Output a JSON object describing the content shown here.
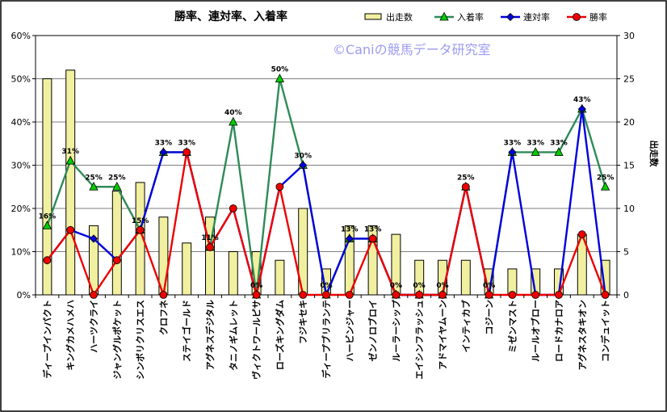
{
  "chart_data": {
    "type": "bar+line",
    "title": "勝率、連対率、入着率",
    "watermark": "©Caniの競馬データ研究室",
    "y2label": "出走数",
    "ylim": [
      0,
      60
    ],
    "y2lim": [
      0,
      30
    ],
    "yticks": [
      "0%",
      "10%",
      "20%",
      "30%",
      "40%",
      "50%",
      "60%"
    ],
    "y2ticks": [
      "0",
      "5",
      "10",
      "15",
      "20",
      "25",
      "30"
    ],
    "grid": true,
    "legend_position": "top-right",
    "categories": [
      "ディープインパクト",
      "キングカメハメハ",
      "ハーツクライ",
      "ジャングルポケット",
      "シンボリクリスエス",
      "クロフネ",
      "ステイゴールド",
      "アグネスデジタル",
      "タニノギムレット",
      "ヴィクトワールピサ",
      "ローズキングダム",
      "フジキセキ",
      "ディープブリランテ",
      "ハービンジャー",
      "ゼンノロブロイ",
      "ルーラーシップ",
      "エイシンフラッシュ",
      "アドマイヤムーン",
      "インティカブ",
      "コジーン",
      "ミゼンマスト",
      "ルールオブロー",
      "ロードカナロア",
      "アグネスタキオン",
      "コンデュイット"
    ],
    "series": [
      {
        "name": "出走数",
        "kind": "bar",
        "axis": "right",
        "color": "#f0f0a0",
        "values": [
          25,
          26,
          8,
          12,
          13,
          9,
          6,
          9,
          5,
          5,
          4,
          10,
          3,
          8,
          8,
          7,
          4,
          4,
          4,
          3,
          3,
          3,
          3,
          7,
          4
        ]
      },
      {
        "name": "入着率",
        "kind": "line",
        "axis": "left",
        "color": "#2e8b57",
        "marker": "triangle",
        "values": [
          16,
          31,
          25,
          25,
          15,
          33,
          33,
          11,
          40,
          0,
          50,
          30,
          0,
          13,
          13,
          0,
          0,
          0,
          25,
          0,
          33,
          33,
          33,
          43,
          25
        ],
        "labels": [
          "16%",
          "31%",
          "25%",
          "25%",
          "15%",
          "33%",
          "33%",
          "11%",
          "40%",
          "0%",
          "50%",
          "30%",
          "0%",
          "13%",
          "13%",
          "0%",
          "0%",
          "0%",
          "25%",
          "0%",
          "33%",
          "33%",
          "33%",
          "43%",
          "25%"
        ]
      },
      {
        "name": "連対率",
        "kind": "line",
        "axis": "left",
        "color": "#0000dd",
        "marker": "diamond",
        "values": [
          8,
          15,
          13,
          8,
          15,
          33,
          33,
          11,
          20,
          0,
          25,
          30,
          0,
          13,
          13,
          0,
          0,
          0,
          25,
          0,
          33,
          0,
          0,
          43,
          0
        ]
      },
      {
        "name": "勝率",
        "kind": "line",
        "axis": "left",
        "color": "#ee0000",
        "marker": "circle",
        "values": [
          8,
          15,
          0,
          8,
          15,
          0,
          33,
          11,
          20,
          0,
          25,
          0,
          0,
          0,
          13,
          0,
          0,
          0,
          25,
          0,
          0,
          0,
          0,
          14,
          0
        ]
      }
    ]
  }
}
